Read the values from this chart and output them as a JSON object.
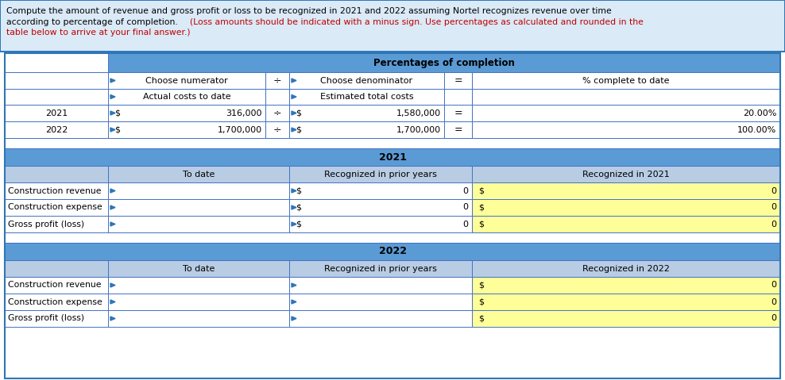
{
  "bg_color_header": "#daeaf7",
  "bg_color_blue_header": "#5b9bd5",
  "bg_color_gray": "#b8cce4",
  "bg_color_yellow": "#ffff99",
  "bg_color_white": "#ffffff",
  "border_color_outer": "#2e75b6",
  "border_color_inner": "#4472c4",
  "text_color_black": "#000000",
  "text_color_red": "#c00000",
  "header_line1_black": "Compute the amount of revenue and gross profit or loss to be recognized in 2021 and 2022 assuming Nortel recognizes revenue over time",
  "header_line2_black": "according to percentage of completion. ",
  "header_line2_red": "(Loss amounts should be indicated with a minus sign. Use percentages as calculated and rounded in the",
  "header_line3_red": "table below to arrive at your final answer.)",
  "pct_header": "Percentages of completion",
  "col1_h1": "Choose numerator",
  "col1_h2": "Actual costs to date",
  "col3_h1": "Choose denominator",
  "col3_h2": "Estimated total costs",
  "col5_h1": "% complete to date",
  "row_2021": "2021",
  "row_2022": "2022",
  "val_2021_num": "316,000",
  "val_2021_den": "1,580,000",
  "val_2021_pct": "20.00%",
  "val_2022_num": "1,700,000",
  "val_2022_den": "1,700,000",
  "val_2022_pct": "100.00%",
  "sec_2021": "2021",
  "sec_2022": "2022",
  "hdr_to_date": "To date",
  "hdr_prior": "Recognized in prior years",
  "hdr_rec_2021": "Recognized in 2021",
  "hdr_rec_2022": "Recognized in 2022",
  "lbl_revenue": "Construction revenue",
  "lbl_expense": "Construction expense",
  "lbl_gross": "Gross profit (loss)",
  "div_sign": "÷",
  "eq_sign": "="
}
